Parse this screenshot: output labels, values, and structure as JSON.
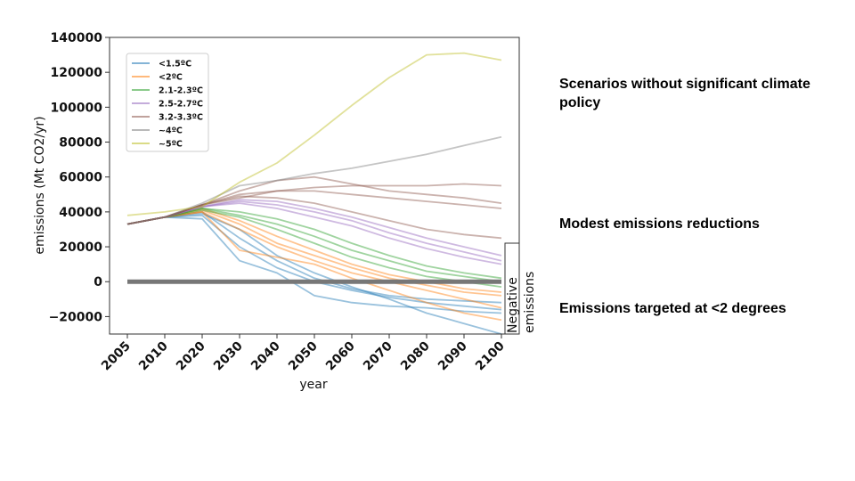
{
  "chart_data": {
    "type": "line",
    "xlabel": "year",
    "ylabel": "emissions (Mt CO2/yr)",
    "x": [
      2005,
      2010,
      2020,
      2030,
      2040,
      2050,
      2060,
      2070,
      2080,
      2090,
      2100
    ],
    "xticks": [
      "2005",
      "2010",
      "2020",
      "2030",
      "2040",
      "2050",
      "2060",
      "2070",
      "2080",
      "2090",
      "2100"
    ],
    "ylim": [
      -30000,
      140000
    ],
    "yticks": [
      -20000,
      0,
      20000,
      40000,
      60000,
      80000,
      100000,
      120000,
      140000
    ],
    "ytick_labels": [
      "−20000",
      "0",
      "20000",
      "40000",
      "60000",
      "80000",
      "100000",
      "120000",
      "140000"
    ],
    "legend_position": "upper-left",
    "zero_line": true,
    "annotation": "Negative emissions",
    "series": [
      {
        "group": "<1.5ºC",
        "color": "#1f77b4",
        "values": [
          33000,
          37000,
          36000,
          12000,
          5000,
          -8000,
          -12000,
          -14000,
          -15000,
          -17000,
          -18000
        ]
      },
      {
        "group": "<1.5ºC",
        "color": "#1f77b4",
        "values": [
          33000,
          37000,
          38000,
          20000,
          8000,
          0,
          -5000,
          -9000,
          -12000,
          -14000,
          -16000
        ]
      },
      {
        "group": "<1.5ºC",
        "color": "#1f77b4",
        "values": [
          33000,
          37000,
          39000,
          30000,
          15000,
          5000,
          -3000,
          -10000,
          -18000,
          -24000,
          -30000
        ]
      },
      {
        "group": "<1.5ºC",
        "color": "#1f77b4",
        "values": [
          33000,
          37000,
          40000,
          25000,
          12000,
          2000,
          -4000,
          -8000,
          -10000,
          -11000,
          -12000
        ]
      },
      {
        "group": "<2ºC",
        "color": "#ff7f0e",
        "values": [
          33000,
          37000,
          40000,
          30000,
          20000,
          12000,
          5000,
          0,
          -5000,
          -10000,
          -15000
        ]
      },
      {
        "group": "<2ºC",
        "color": "#ff7f0e",
        "values": [
          33000,
          37000,
          41000,
          33000,
          22000,
          15000,
          8000,
          2000,
          -2000,
          -6000,
          -8000
        ]
      },
      {
        "group": "<2ºC",
        "color": "#ff7f0e",
        "values": [
          33000,
          37000,
          42000,
          35000,
          26000,
          18000,
          10000,
          4000,
          0,
          -4000,
          -6000
        ]
      },
      {
        "group": "<2ºC",
        "color": "#ff7f0e",
        "values": [
          33000,
          37000,
          40000,
          18000,
          14000,
          10000,
          2000,
          -5000,
          -12000,
          -18000,
          -22000
        ]
      },
      {
        "group": "2.1-2.3ºC",
        "color": "#2ca02c",
        "values": [
          33000,
          37000,
          42000,
          38000,
          33000,
          26000,
          18000,
          12000,
          6000,
          3000,
          0
        ]
      },
      {
        "group": "2.1-2.3ºC",
        "color": "#2ca02c",
        "values": [
          33000,
          37000,
          42000,
          40000,
          36000,
          30000,
          22000,
          15000,
          9000,
          5000,
          2000
        ]
      },
      {
        "group": "2.1-2.3ºC",
        "color": "#2ca02c",
        "values": [
          33000,
          37000,
          41000,
          37000,
          30000,
          22000,
          14000,
          8000,
          3000,
          0,
          -3000
        ]
      },
      {
        "group": "2.5-2.7ºC",
        "color": "#9467bd",
        "values": [
          33000,
          37000,
          43000,
          46000,
          44000,
          40000,
          35000,
          28000,
          22000,
          17000,
          12000
        ]
      },
      {
        "group": "2.5-2.7ºC",
        "color": "#9467bd",
        "values": [
          33000,
          37000,
          43000,
          47000,
          46000,
          42000,
          37000,
          31000,
          25000,
          20000,
          15000
        ]
      },
      {
        "group": "2.5-2.7ºC",
        "color": "#9467bd",
        "values": [
          33000,
          37000,
          43000,
          45000,
          42000,
          37000,
          32000,
          25000,
          19000,
          14000,
          10000
        ]
      },
      {
        "group": "3.2-3.3ºC",
        "color": "#8c564b",
        "values": [
          33000,
          37000,
          44000,
          50000,
          52000,
          52000,
          50000,
          48000,
          46000,
          44000,
          42000
        ]
      },
      {
        "group": "3.2-3.3ºC",
        "color": "#8c564b",
        "values": [
          33000,
          37000,
          44000,
          52000,
          58000,
          60000,
          56000,
          52000,
          50000,
          48000,
          45000
        ]
      },
      {
        "group": "3.2-3.3ºC",
        "color": "#8c564b",
        "values": [
          33000,
          37000,
          44000,
          48000,
          52000,
          54000,
          55000,
          55000,
          55000,
          56000,
          55000
        ]
      },
      {
        "group": "3.2-3.3ºC",
        "color": "#8c564b",
        "values": [
          33000,
          37000,
          44000,
          49000,
          48000,
          45000,
          40000,
          35000,
          30000,
          27000,
          25000
        ]
      },
      {
        "group": "~4ºC",
        "color": "#7f7f7f",
        "values": [
          33000,
          37000,
          45000,
          55000,
          58000,
          62000,
          65000,
          69000,
          73000,
          78000,
          83000
        ]
      },
      {
        "group": "~5ºC",
        "color": "#bcbd22",
        "values": [
          38000,
          40000,
          43000,
          57000,
          68000,
          84000,
          101000,
          117000,
          130000,
          131000,
          127000
        ]
      }
    ],
    "legend": [
      {
        "label": "<1.5ºC",
        "color": "#1f77b4"
      },
      {
        "label": "<2ºC",
        "color": "#ff7f0e"
      },
      {
        "label": "2.1-2.3ºC",
        "color": "#2ca02c"
      },
      {
        "label": "2.5-2.7ºC",
        "color": "#9467bd"
      },
      {
        "label": "3.2-3.3ºC",
        "color": "#8c564b"
      },
      {
        "label": "~4ºC",
        "color": "#7f7f7f"
      },
      {
        "label": "~5ºC",
        "color": "#bcbd22"
      }
    ]
  },
  "notes": {
    "no_policy": "Scenarios without significant climate policy",
    "modest": "Modest emissions reductions",
    "targeted": "Emissions targeted at <2 degrees"
  }
}
